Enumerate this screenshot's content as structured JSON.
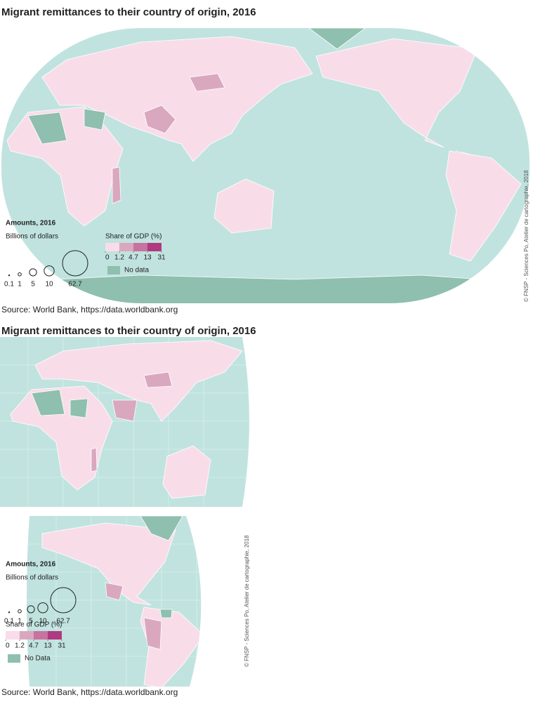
{
  "map_1": {
    "title": "Migrant remittances to their country of origin, 2016",
    "legend": {
      "amounts_title": "Amounts, 2016",
      "amounts_unit": "Billions of dollars",
      "sizes": [
        0.1,
        1,
        5,
        10,
        62.7
      ],
      "share_title": "Share of GDP (%)",
      "share_breaks": [
        0,
        1.2,
        4.7,
        13,
        31
      ],
      "share_colors": [
        "#f9dcea",
        "#d9a8bf",
        "#c8729f",
        "#b03a7f"
      ],
      "no_data": "No data",
      "no_data_color": "#8fbfae"
    },
    "source": "Source: World Bank, https://data.worldbank.org",
    "credit": "© FNSP - Sciences Po, Atelier de cartographie, 2018"
  },
  "map_2": {
    "title": "Migrant remittances to their country of origin, 2016",
    "legend": {
      "amounts_title": "Amounts, 2016",
      "amounts_unit": "Billions of dollars",
      "sizes": [
        0.1,
        1,
        5,
        10,
        62.7
      ],
      "share_title": "Share of GDP (%)",
      "share_breaks": [
        0,
        1.2,
        4.7,
        13,
        31
      ],
      "share_colors": [
        "#f9dcea",
        "#d9a8bf",
        "#c8729f",
        "#b03a7f"
      ],
      "no_data": "No Data",
      "no_data_color": "#8fbfae"
    },
    "source": "Source: World Bank, https://data.worldbank.org",
    "credit": "© FNSP - Sciences Po, Atelier de cartographie, 2018"
  }
}
